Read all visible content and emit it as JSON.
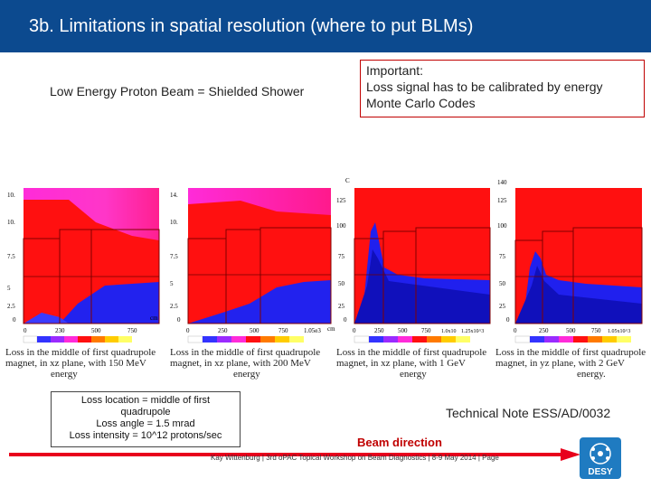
{
  "header": {
    "title": "3b. Limitations in spatial resolution (where to put BLMs)"
  },
  "left_heading": "Low Energy Proton Beam = Shielded Shower",
  "important_box": {
    "lines": [
      "Important:",
      "Loss signal has to be calibrated by energy",
      "Monte Carlo Codes"
    ]
  },
  "plots": [
    {
      "y_ticks": [
        "10.",
        "10.",
        "7.5",
        "5",
        "2.5",
        "0"
      ],
      "x_ticks": [
        "0",
        "230",
        "500",
        "750"
      ],
      "x_unit": "cm",
      "caption": [
        "Loss in the middle of first quadrupole",
        "magnet, in xz plane, with 150 MeV",
        "energy"
      ]
    },
    {
      "y_ticks": [
        "14.",
        "10.",
        "7.5",
        "5",
        "2.5",
        "0"
      ],
      "x_ticks": [
        "0",
        "250",
        "500",
        "750",
        "1.05e3"
      ],
      "x_unit": "cm",
      "caption": [
        "Loss in the middle of first quadrupole",
        "magnet, in xz plane, with 200 MeV",
        "energy"
      ]
    },
    {
      "y_ticks": [
        "C",
        "125",
        "100",
        "75",
        "50",
        "25",
        "0"
      ],
      "x_ticks": [
        "0",
        "250",
        "500",
        "750",
        "1.0x10",
        "1.25x10^3"
      ],
      "x_unit": "cm",
      "caption": [
        "Loss in the middle of first quadrupole",
        "magnet, in xz plane, with 1 GeV",
        "energy"
      ]
    },
    {
      "y_ticks": [
        "140",
        "125",
        "100",
        "75",
        "50",
        "25",
        "0"
      ],
      "x_ticks": [
        "0",
        "250",
        "500",
        "750",
        "1.05x10^3"
      ],
      "x_unit": "cm",
      "caption": [
        "Loss in the middle of first quadrupole",
        "magnet, in yz plane, with 2 GeV",
        "energy."
      ]
    }
  ],
  "loss_box": {
    "lines": [
      "Loss location = middle of first",
      "quadrupole",
      "Loss angle = 1.5 mrad",
      "Loss intensity = 10^12 protons/sec"
    ]
  },
  "technical_note": "Technical Note ESS/AD/0032",
  "beam_direction": "Beam direction",
  "footer": "Kay Wittenburg | 3rd oPAC Topical Workshop on Beam Diagnostics | 8-9 May 2014 | Page",
  "logo": {
    "text": "DESY"
  },
  "colors": {
    "title_bar": "#0c4a8f",
    "accent_red": "#c00000",
    "logo_blue": "#1f7bc1"
  }
}
